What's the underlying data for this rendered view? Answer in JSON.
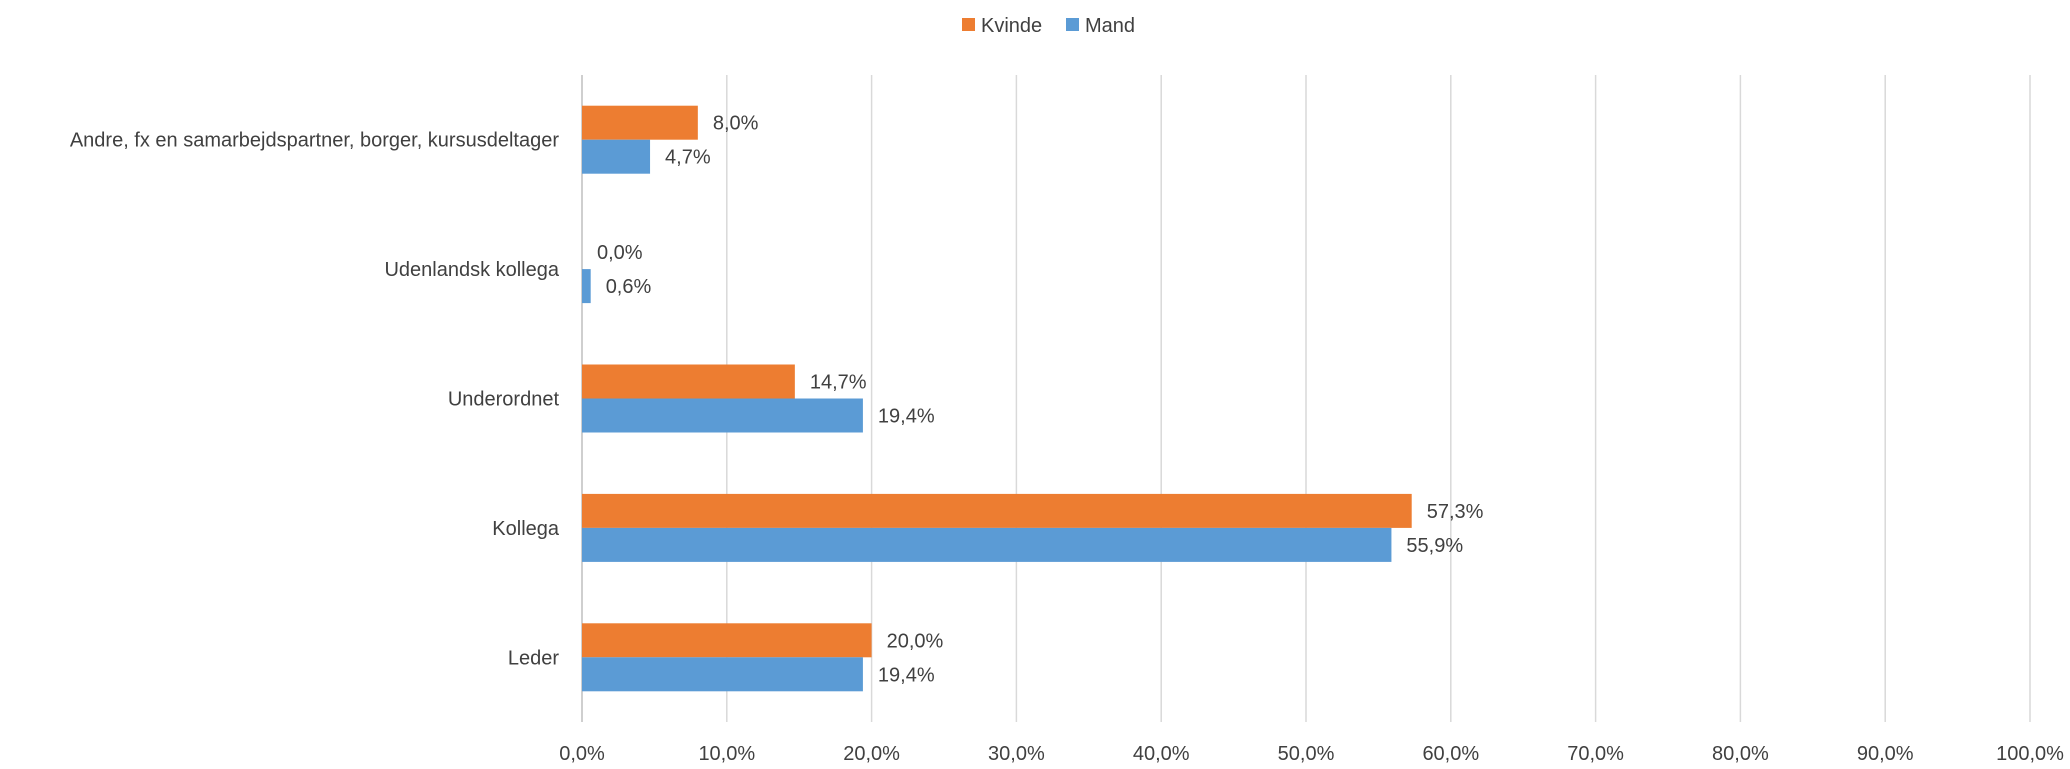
{
  "chart_data": {
    "type": "bar",
    "orientation": "horizontal",
    "categories": [
      "Andre, fx en samarbejdspartner, borger, kursusdeltager",
      "Udenlandsk kollega",
      "Underordnet",
      "Kollega",
      "Leder"
    ],
    "series": [
      {
        "name": "Kvinde",
        "color": "#ED7D31",
        "values": [
          8.0,
          0.0,
          14.7,
          57.3,
          20.0
        ],
        "labels": [
          "8,0%",
          "0,0%",
          "14,7%",
          "57,3%",
          "20,0%"
        ]
      },
      {
        "name": "Mand",
        "color": "#5B9BD5",
        "values": [
          4.7,
          0.6,
          19.4,
          55.9,
          19.4
        ],
        "labels": [
          "4,7%",
          "0,6%",
          "19,4%",
          "55,9%",
          "19,4%"
        ]
      }
    ],
    "xlim": [
      0,
      100
    ],
    "xticks": [
      0,
      10,
      20,
      30,
      40,
      50,
      60,
      70,
      80,
      90,
      100
    ],
    "xtick_labels": [
      "0,0%",
      "10,0%",
      "20,0%",
      "30,0%",
      "40,0%",
      "50,0%",
      "60,0%",
      "70,0%",
      "80,0%",
      "90,0%",
      "100,0%"
    ],
    "title": "",
    "xlabel": "",
    "ylabel": "",
    "grid": "vertical",
    "legend_position": "top-center",
    "gridline_color": "#D9D9D9",
    "text_color": "#404040"
  }
}
